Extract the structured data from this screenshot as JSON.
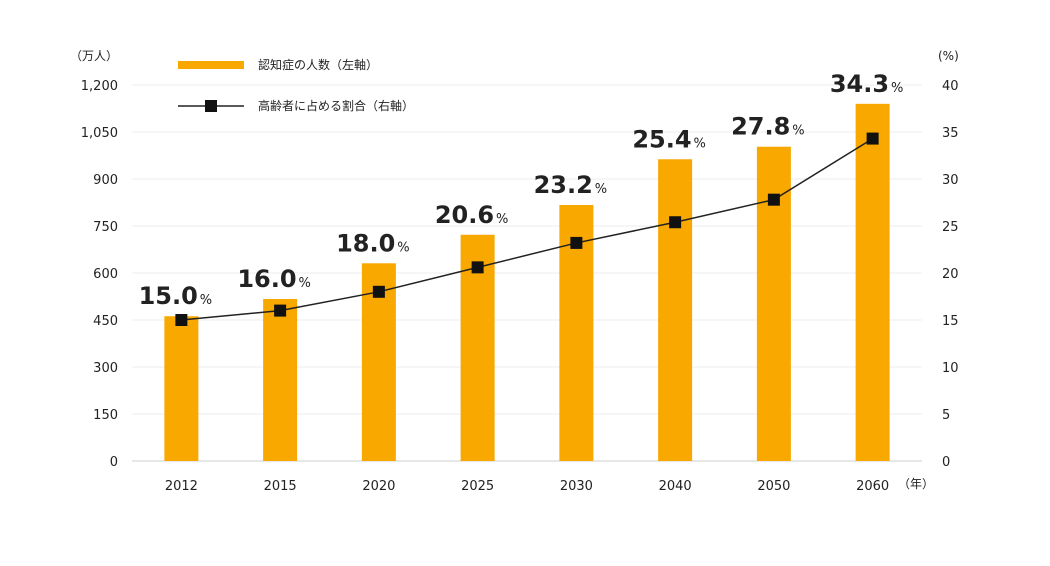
{
  "chart_data": {
    "type": "bar",
    "categories": [
      "2012",
      "2015",
      "2020",
      "2025",
      "2030",
      "2040",
      "2050",
      "2060"
    ],
    "series": [
      {
        "name": "認知症の人数（左軸）",
        "type": "bar",
        "axis": "left",
        "color": "#F9A800",
        "values": [
          462,
          517,
          631,
          722,
          817,
          963,
          1003,
          1140
        ]
      },
      {
        "name": "高齢者に占める割合（右軸）",
        "type": "line",
        "axis": "right",
        "color": "#222222",
        "marker": "square",
        "values": [
          15.0,
          16.0,
          18.0,
          20.6,
          23.2,
          25.4,
          27.8,
          34.3
        ]
      }
    ],
    "data_labels": [
      "15.0",
      "16.0",
      "18.0",
      "20.6",
      "23.2",
      "25.4",
      "27.8",
      "34.3"
    ],
    "data_label_suffix": "%",
    "y_left": {
      "unit_label": "（万人）",
      "range": [
        0,
        1200
      ],
      "ticks": [
        "0",
        "150",
        "300",
        "450",
        "600",
        "750",
        "900",
        "1,050",
        "1,200"
      ]
    },
    "y_right": {
      "unit_label": "(%)",
      "range": [
        0,
        40
      ],
      "ticks": [
        "0",
        "5",
        "10",
        "15",
        "20",
        "25",
        "30",
        "35",
        "40"
      ]
    },
    "x_unit_label": "（年）",
    "legend_position": "top-left",
    "grid": true
  }
}
